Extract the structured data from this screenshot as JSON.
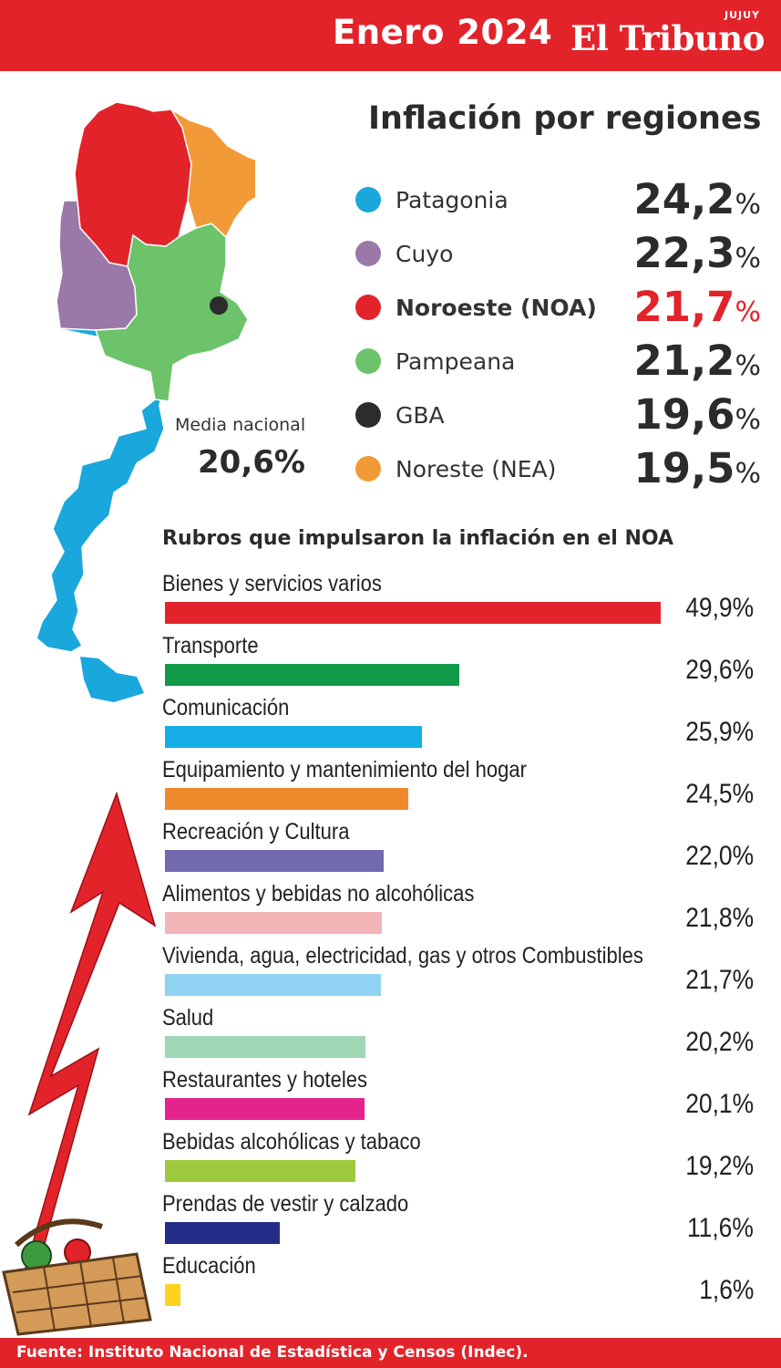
{
  "header": {
    "date": "Enero 2024",
    "logo": "El Tribuno",
    "logo_sub": "JUJUY"
  },
  "title": "Inflación por regiones",
  "regions": [
    {
      "name": "Patagonia",
      "value": "24,2",
      "color": "#1aa7dc",
      "highlight": false
    },
    {
      "name": "Cuyo",
      "value": "22,3",
      "color": "#9a79a8",
      "highlight": false
    },
    {
      "name": "Noroeste (NOA)",
      "value": "21,7",
      "color": "#e2232a",
      "highlight": true
    },
    {
      "name": "Pampeana",
      "value": "21,2",
      "color": "#6cc36a",
      "highlight": false
    },
    {
      "name": "GBA",
      "value": "19,6",
      "color": "#2c2c2c",
      "highlight": false
    },
    {
      "name": "Noreste (NEA)",
      "value": "19,5",
      "color": "#f29a38",
      "highlight": false
    }
  ],
  "percent_sign": "%",
  "media": {
    "label": "Media nacional",
    "value": "20,6%"
  },
  "rubros_title": "Rubros que impulsaron la inflación en el NOA",
  "footer": "Fuente: Instituto Nacional de Estadística y Censos (Indec).",
  "chart_data": [
    {
      "type": "table",
      "title": "Inflación por regiones",
      "rows": [
        {
          "region": "Patagonia",
          "value": 24.2
        },
        {
          "region": "Cuyo",
          "value": 22.3
        },
        {
          "region": "Noroeste (NOA)",
          "value": 21.7
        },
        {
          "region": "Pampeana",
          "value": 21.2
        },
        {
          "region": "GBA",
          "value": 19.6
        },
        {
          "region": "Noreste (NEA)",
          "value": 19.5
        }
      ]
    },
    {
      "type": "bar",
      "orientation": "horizontal",
      "title": "Rubros que impulsaron la inflación en el NOA",
      "categories": [
        "Bienes y servicios varios",
        "Transporte",
        "Comunicación",
        "Equipamiento y mantenimiento del hogar",
        "Recreación y Cultura",
        "Alimentos y bebidas no alcohólicas",
        "Vivienda, agua, electricidad, gas y otros Combustibles",
        "Salud",
        "Restaurantes y hoteles",
        "Bebidas alcohólicas y tabaco",
        "Prendas de vestir y calzado",
        "Educación"
      ],
      "values": [
        49.9,
        29.6,
        25.9,
        24.5,
        22.0,
        21.8,
        21.7,
        20.2,
        20.1,
        19.2,
        11.6,
        1.6
      ],
      "value_labels": [
        "49,9%",
        "29,6%",
        "25,9%",
        "24,5%",
        "22,0%",
        "21,8%",
        "21,7%",
        "20,2%",
        "20,1%",
        "19,2%",
        "11,6%",
        "1,6%"
      ],
      "colors": [
        "#e2232a",
        "#119a4a",
        "#15aee6",
        "#ef8a2c",
        "#716aae",
        "#f3b5b8",
        "#8fd2f2",
        "#9fd7b4",
        "#e5238f",
        "#9ec93c",
        "#232c86",
        "#ffd21f"
      ],
      "xlim": [
        0,
        50
      ]
    }
  ]
}
